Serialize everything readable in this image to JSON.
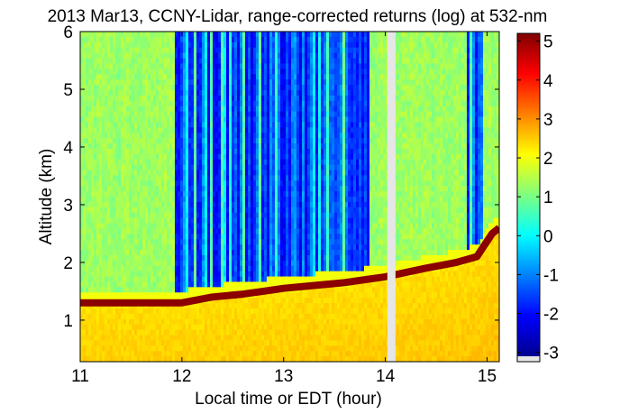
{
  "chart_data": {
    "type": "heatmap",
    "title": "2013 Mar13, CCNY-Lidar, range-corrected returns (log) at 532-nm",
    "xlabel": "Local time or EDT (hour)",
    "ylabel": "Altitude (km)",
    "xlim": [
      11,
      15.12
    ],
    "ylim": [
      0.28,
      6.0
    ],
    "x_ticks": [
      "11",
      "12",
      "13",
      "14",
      "15"
    ],
    "y_ticks": [
      "1",
      "2",
      "3",
      "4",
      "5",
      "6"
    ],
    "colorbar": {
      "range": [
        -3.1,
        5.2
      ],
      "ticks": [
        "-3",
        "-2",
        "-1",
        "0",
        "1",
        "2",
        "3",
        "4",
        "5"
      ],
      "colormap": "jet",
      "missing_color": "#e6e6e6"
    },
    "data_gap": [
      14.02,
      14.1
    ],
    "boundary_layer_top": [
      {
        "x": 11.0,
        "y": 1.3
      },
      {
        "x": 11.3,
        "y": 1.3
      },
      {
        "x": 11.9,
        "y": 1.3
      },
      {
        "x": 12.0,
        "y": 1.3
      },
      {
        "x": 12.3,
        "y": 1.4
      },
      {
        "x": 12.6,
        "y": 1.45
      },
      {
        "x": 12.8,
        "y": 1.5
      },
      {
        "x": 13.0,
        "y": 1.55
      },
      {
        "x": 13.3,
        "y": 1.6
      },
      {
        "x": 13.6,
        "y": 1.65
      },
      {
        "x": 13.8,
        "y": 1.7
      },
      {
        "x": 14.0,
        "y": 1.75
      },
      {
        "x": 14.4,
        "y": 1.9
      },
      {
        "x": 14.7,
        "y": 2.0
      },
      {
        "x": 14.9,
        "y": 2.1
      },
      {
        "x": 15.05,
        "y": 2.5
      },
      {
        "x": 15.12,
        "y": 2.6
      }
    ]
  }
}
